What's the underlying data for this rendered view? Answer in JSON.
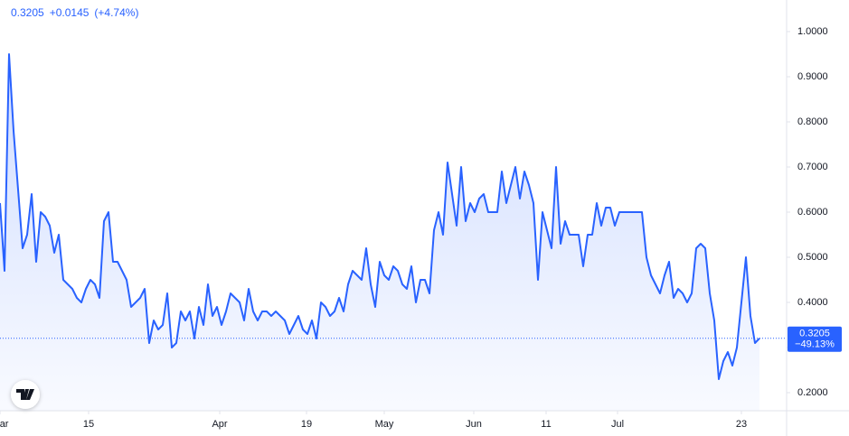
{
  "chart_data": {
    "type": "line",
    "header": {
      "last": "0.3205",
      "change": "+0.0145",
      "change_pct": "(+4.74%)"
    },
    "price_label_change": "−49.13%",
    "color": "#2962ff",
    "values": [
      0.62,
      0.47,
      0.95,
      0.78,
      0.65,
      0.52,
      0.55,
      0.64,
      0.49,
      0.6,
      0.59,
      0.57,
      0.51,
      0.55,
      0.45,
      0.44,
      0.43,
      0.41,
      0.4,
      0.43,
      0.45,
      0.44,
      0.41,
      0.58,
      0.6,
      0.49,
      0.49,
      0.47,
      0.45,
      0.39,
      0.4,
      0.41,
      0.43,
      0.31,
      0.36,
      0.34,
      0.35,
      0.42,
      0.3,
      0.31,
      0.38,
      0.36,
      0.38,
      0.32,
      0.39,
      0.35,
      0.44,
      0.37,
      0.39,
      0.35,
      0.38,
      0.42,
      0.41,
      0.4,
      0.36,
      0.43,
      0.38,
      0.36,
      0.38,
      0.38,
      0.37,
      0.38,
      0.37,
      0.36,
      0.33,
      0.35,
      0.37,
      0.34,
      0.33,
      0.36,
      0.32,
      0.4,
      0.39,
      0.37,
      0.38,
      0.41,
      0.38,
      0.44,
      0.47,
      0.46,
      0.45,
      0.52,
      0.44,
      0.39,
      0.49,
      0.46,
      0.45,
      0.48,
      0.47,
      0.44,
      0.43,
      0.48,
      0.4,
      0.45,
      0.45,
      0.42,
      0.56,
      0.6,
      0.55,
      0.71,
      0.64,
      0.57,
      0.7,
      0.58,
      0.62,
      0.6,
      0.63,
      0.64,
      0.6,
      0.6,
      0.6,
      0.69,
      0.62,
      0.66,
      0.7,
      0.63,
      0.69,
      0.66,
      0.62,
      0.45,
      0.6,
      0.56,
      0.52,
      0.7,
      0.53,
      0.58,
      0.55,
      0.55,
      0.55,
      0.48,
      0.55,
      0.55,
      0.62,
      0.57,
      0.61,
      0.61,
      0.57,
      0.6,
      0.6,
      0.6,
      0.6,
      0.6,
      0.6,
      0.5,
      0.46,
      0.44,
      0.42,
      0.46,
      0.49,
      0.41,
      0.43,
      0.42,
      0.4,
      0.42,
      0.52,
      0.53,
      0.52,
      0.42,
      0.36,
      0.23,
      0.27,
      0.29,
      0.26,
      0.3,
      0.4,
      0.5,
      0.37,
      0.31,
      0.3205
    ],
    "xlim": [
      0,
      174
    ],
    "xticks": [
      {
        "value": 0,
        "label": "Mar"
      },
      {
        "value": 19.6,
        "label": "15"
      },
      {
        "value": 48.6,
        "label": "Apr"
      },
      {
        "value": 67.8,
        "label": "19"
      },
      {
        "value": 85,
        "label": "May"
      },
      {
        "value": 104.8,
        "label": "Jun"
      },
      {
        "value": 120.8,
        "label": "11"
      },
      {
        "value": 136.6,
        "label": "Jul"
      },
      {
        "value": 164,
        "label": "23"
      }
    ],
    "ylim": [
      0.16,
      1.07
    ],
    "yticks": [
      {
        "value": 0.2,
        "label": "0.2000"
      },
      {
        "value": 0.3,
        "label": "0.3000"
      },
      {
        "value": 0.4,
        "label": "0.4000"
      },
      {
        "value": 0.5,
        "label": "0.5000"
      },
      {
        "value": 0.6,
        "label": "0.6000"
      },
      {
        "value": 0.7,
        "label": "0.7000"
      },
      {
        "value": 0.8,
        "label": "0.8000"
      },
      {
        "value": 0.9,
        "label": "0.9000"
      },
      {
        "value": 1.0,
        "label": "1.0000"
      }
    ],
    "grid": false
  }
}
